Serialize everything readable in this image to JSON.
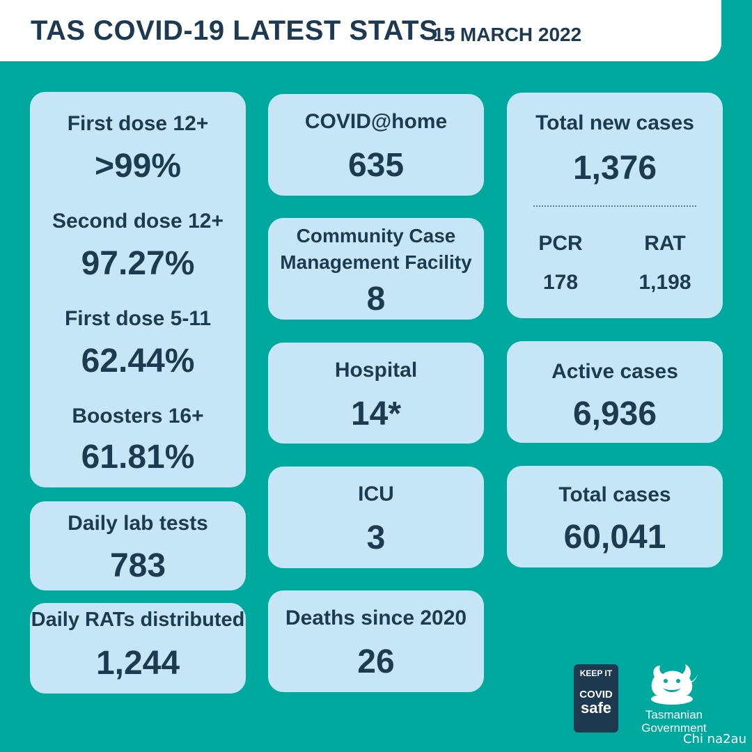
{
  "header": {
    "title": "TAS COVID-19 LATEST STATS -",
    "date": "15 MARCH 2022"
  },
  "vaccination": [
    {
      "label": "First dose 12+",
      "value": ">99%"
    },
    {
      "label": "Second dose 12+",
      "value": "97.27%"
    },
    {
      "label": "First dose 5-11",
      "value": "62.44%"
    },
    {
      "label": "Boosters 16+",
      "value": "61.81%"
    }
  ],
  "daily_lab_tests": {
    "label": "Daily lab tests",
    "value": "783"
  },
  "daily_rats": {
    "label": "Daily RATs distributed",
    "value": "1,244"
  },
  "covid_home": {
    "label": "COVID@home",
    "value": "635"
  },
  "ccmf": {
    "label_line1": "Community Case",
    "label_line2": "Management Facility",
    "value": "8"
  },
  "hospital": {
    "label": "Hospital",
    "value": "14*"
  },
  "icu": {
    "label": "ICU",
    "value": "3"
  },
  "deaths": {
    "label": "Deaths since 2020",
    "value": "26"
  },
  "new_cases": {
    "label": "Total new cases",
    "value": "1,376",
    "pcr_label": "PCR",
    "pcr_value": "178",
    "rat_label": "RAT",
    "rat_value": "1,198"
  },
  "active_cases": {
    "label": "Active cases",
    "value": "6,936"
  },
  "total_cases": {
    "label": "Total cases",
    "value": "60,041"
  },
  "footer": {
    "badge_line1": "KEEP IT",
    "badge_line2": "COVID",
    "badge_line3": "safe",
    "gov_line1": "Tasmanian",
    "gov_line2": "Government",
    "watermark": "Chi na2au"
  }
}
